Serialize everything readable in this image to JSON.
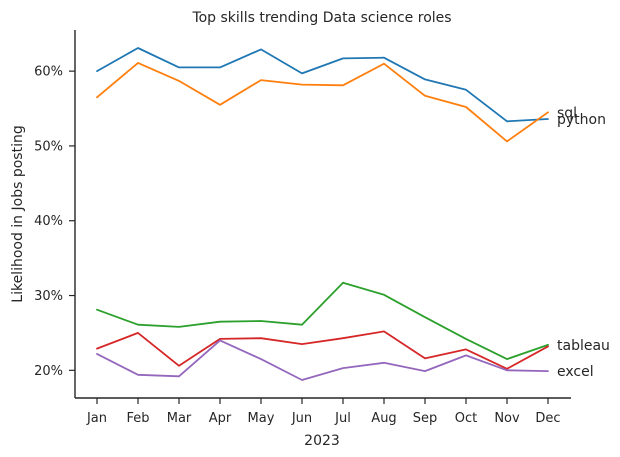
{
  "chart_data": {
    "type": "line",
    "title": "Top skills trending Data science roles",
    "xlabel": "2023",
    "ylabel": "Likelihood in Jobs posting",
    "categories": [
      "Jan",
      "Feb",
      "Mar",
      "Apr",
      "May",
      "Jun",
      "Jul",
      "Aug",
      "Sep",
      "Oct",
      "Nov",
      "Dec"
    ],
    "ylim": [
      16.3,
      65.5
    ],
    "yticks": [
      20,
      30,
      40,
      50,
      60
    ],
    "ytick_format": "percent",
    "grid": false,
    "legend": "direct labels at line ends",
    "series": [
      {
        "name": "python",
        "color": "#1f77b4",
        "values": [
          60.0,
          63.1,
          60.5,
          60.5,
          62.9,
          59.7,
          61.7,
          61.8,
          58.9,
          57.5,
          53.3,
          53.6
        ]
      },
      {
        "name": "sql",
        "color": "#ff7f0e",
        "values": [
          56.5,
          61.1,
          58.7,
          55.5,
          58.8,
          58.2,
          58.1,
          61.0,
          56.7,
          55.2,
          50.6,
          54.5
        ]
      },
      {
        "name": "tableau",
        "color": "#2ca02c",
        "values": [
          28.1,
          26.1,
          25.8,
          26.5,
          26.6,
          26.1,
          31.7,
          30.1,
          27.1,
          24.2,
          21.5,
          23.4
        ]
      },
      {
        "name": "",
        "color": "#d62728",
        "values": [
          22.9,
          25.0,
          20.6,
          24.2,
          24.3,
          23.5,
          24.3,
          25.2,
          21.6,
          22.8,
          20.2,
          23.2
        ]
      },
      {
        "name": "excel",
        "color": "#9467bd",
        "values": [
          22.2,
          19.4,
          19.2,
          24.0,
          21.5,
          18.7,
          20.3,
          21.0,
          19.9,
          22.0,
          20.0,
          19.9
        ]
      }
    ]
  }
}
